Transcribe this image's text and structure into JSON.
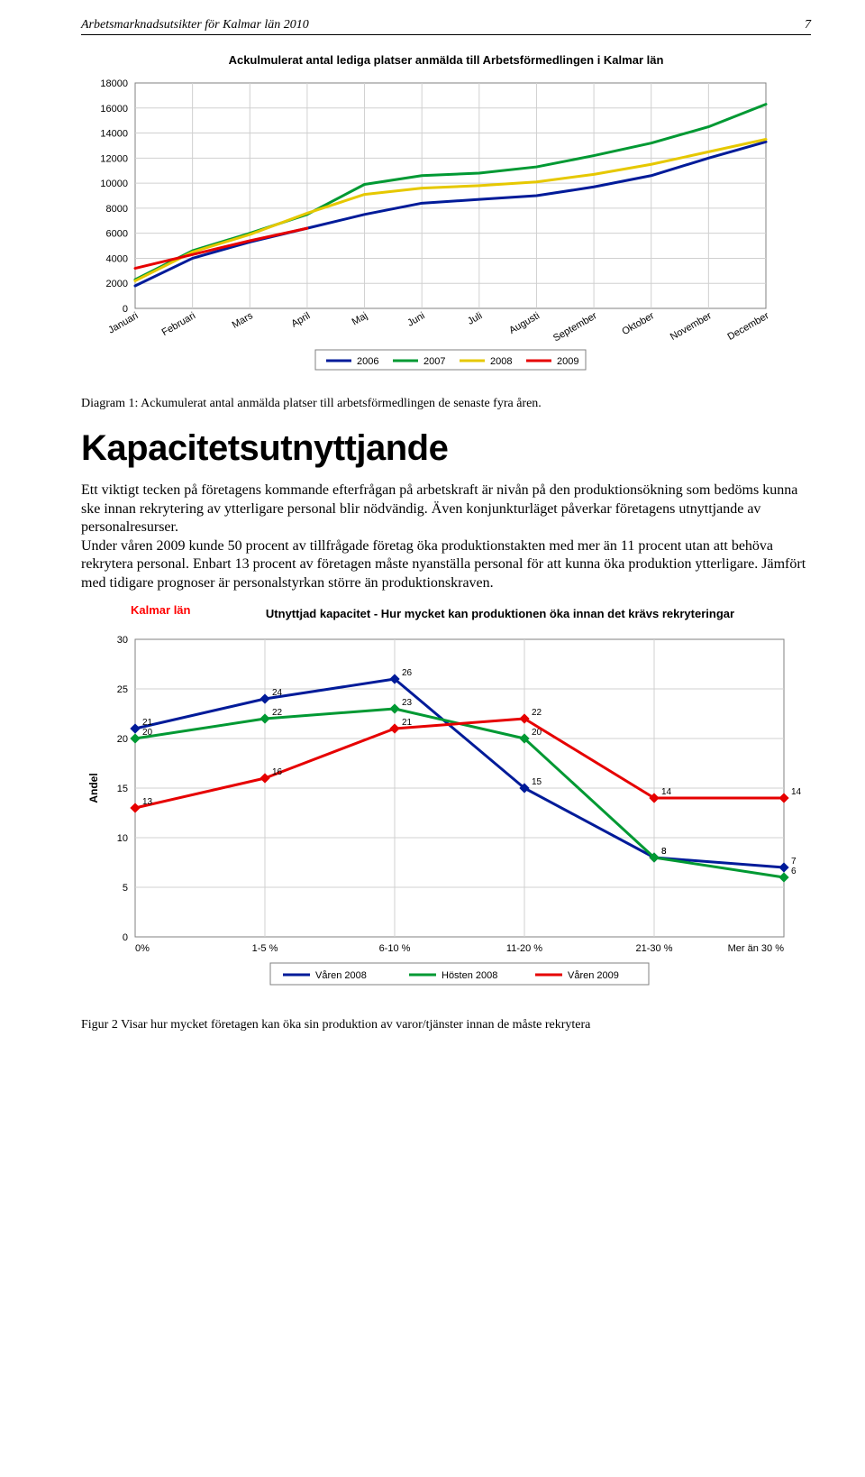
{
  "header": {
    "title": "Arbetsmarknadsutsikter för Kalmar län 2010",
    "page_num": "7"
  },
  "chart1": {
    "type": "line",
    "title": "Ackulmulerat antal lediga platser anmälda till Arbetsförmedlingen i Kalmar län",
    "months": [
      "Januari",
      "Februari",
      "Mars",
      "April",
      "Maj",
      "Juni",
      "Juli",
      "Augusti",
      "September",
      "Oktober",
      "November",
      "December"
    ],
    "ylim": [
      0,
      18000
    ],
    "ytick_step": 2000,
    "grid_color": "#d0d0d0",
    "border_color": "#808080",
    "line_width": 3,
    "series": [
      {
        "name": "2006",
        "color": "#001b99",
        "values": [
          1800,
          4000,
          5300,
          6400,
          7500,
          8400,
          8700,
          9000,
          9700,
          10600,
          12000,
          13300
        ]
      },
      {
        "name": "2007",
        "color": "#009933",
        "values": [
          2300,
          4600,
          6000,
          7500,
          9900,
          10600,
          10800,
          11300,
          12200,
          13200,
          14500,
          16300
        ]
      },
      {
        "name": "2008",
        "color": "#e6c800",
        "values": [
          2200,
          4500,
          5900,
          7600,
          9100,
          9600,
          9800,
          10100,
          10700,
          11500,
          12500,
          13500
        ]
      },
      {
        "name": "2009",
        "color": "#e60000",
        "values": [
          3200,
          4300,
          5400,
          6400
        ]
      }
    ],
    "legend_labels": [
      "2006",
      "2007",
      "2008",
      "2009"
    ],
    "caption": "Diagram 1: Ackumulerat antal anmälda platser till arbetsförmedlingen de senaste fyra åren."
  },
  "section": {
    "heading": "Kapacitetsutnyttjande",
    "body": "Ett viktigt tecken på företagens kommande efterfrågan på arbetskraft är nivån på den produktionsökning som bedöms kunna ske innan rekrytering av ytterligare personal blir nödvändig. Även konjunkturläget påverkar företagens utnyttjande av personalresurser.\nUnder våren 2009 kunde 50 procent av tillfrågade företag öka produktionstakten med mer än 11 procent utan att behöva rekrytera personal. Enbart 13 procent av företagen måste nyanställa personal för att kunna öka produktion ytterligare. Jämfört med tidigare prognoser är personalstyrkan större än produktionskraven."
  },
  "chart2": {
    "type": "line",
    "region_label": "Kalmar län",
    "title": "Utnyttjad kapacitet - Hur mycket kan produktionen öka innan det krävs rekryteringar",
    "categories": [
      "0%",
      "1-5 %",
      "6-10 %",
      "11-20 %",
      "21-30 %",
      "Mer än 30 %"
    ],
    "ylabel": "Andel",
    "ylim": [
      0,
      30
    ],
    "ytick_step": 5,
    "grid_color": "#d0d0d0",
    "border_color": "#808080",
    "line_width": 3,
    "marker_size": 4,
    "series": [
      {
        "name": "Våren 2008",
        "color": "#001b99",
        "values": [
          21,
          24,
          26,
          15,
          8,
          7
        ],
        "labels": [
          "21",
          "24",
          "26",
          "15",
          "8",
          "7"
        ]
      },
      {
        "name": "Hösten 2008",
        "color": "#009933",
        "values": [
          20,
          22,
          23,
          20,
          8,
          6
        ],
        "labels": [
          "20",
          "22",
          "23",
          "20",
          "8",
          "6"
        ]
      },
      {
        "name": "Våren 2009",
        "color": "#e60000",
        "values": [
          13,
          16,
          21,
          22,
          14,
          14
        ],
        "labels": [
          "13",
          "16",
          "21",
          "22",
          "14",
          "14"
        ]
      }
    ],
    "footer_caption": "Figur 2 Visar hur mycket företagen kan öka sin produktion av varor/tjänster innan de måste rekrytera"
  }
}
